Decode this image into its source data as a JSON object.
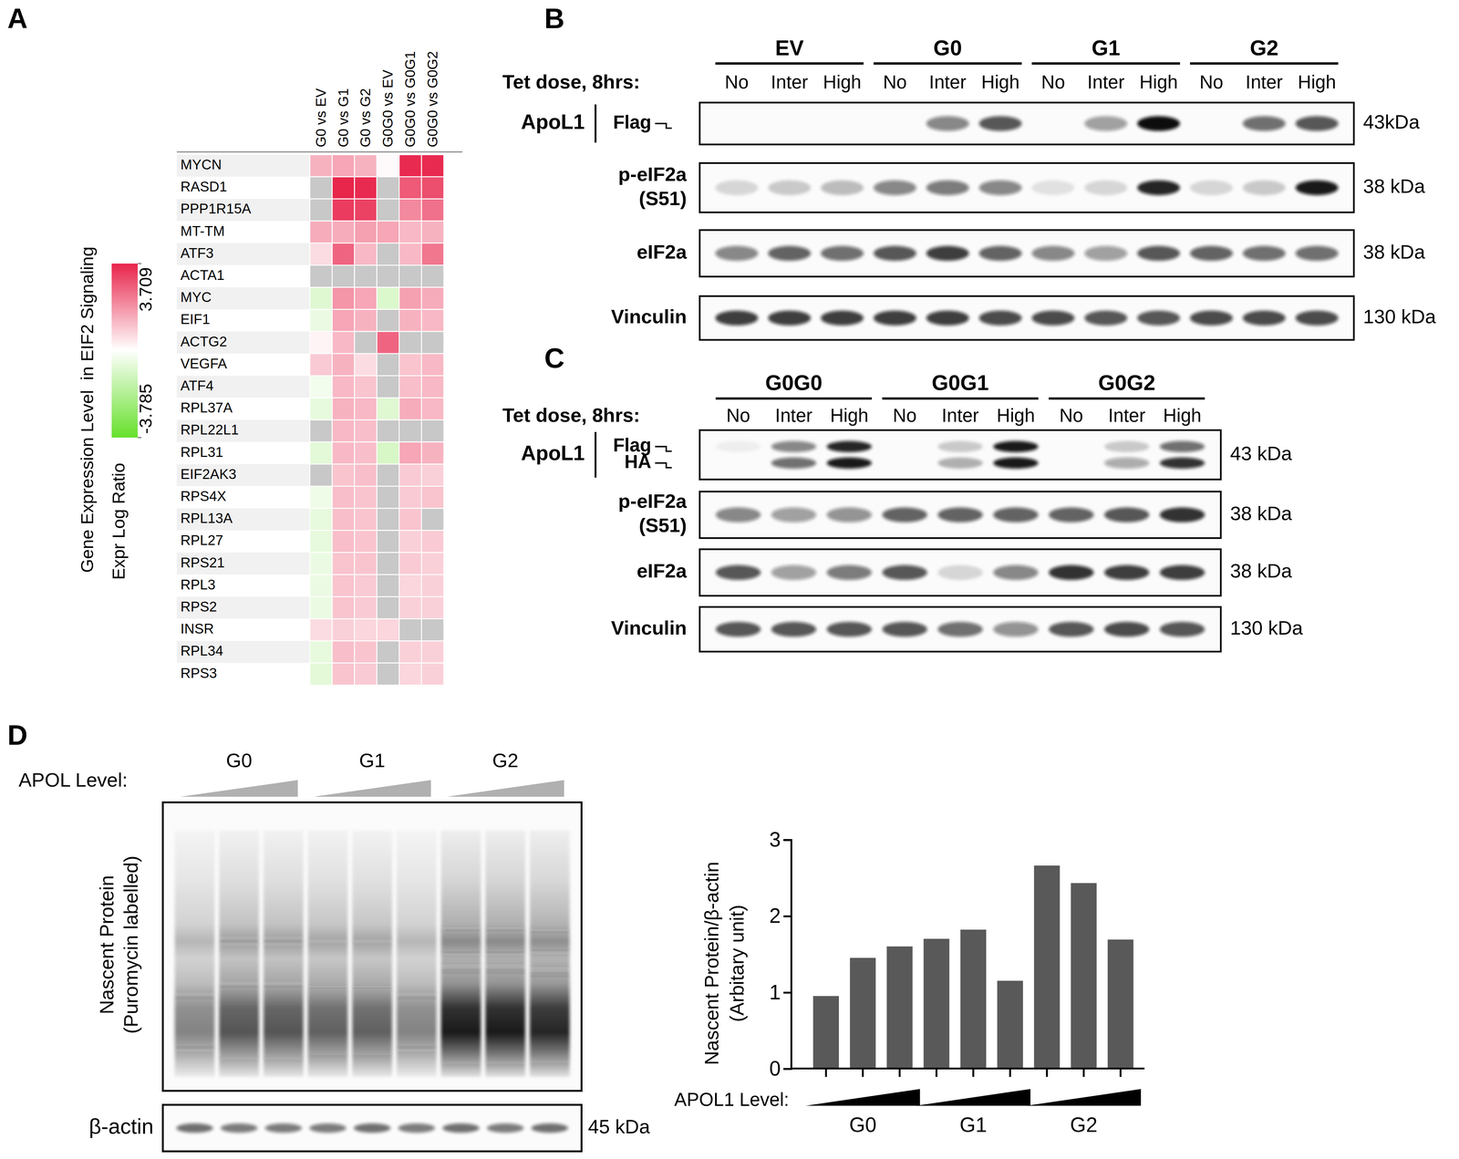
{
  "figure": {
    "panel_labels": [
      "A",
      "B",
      "C",
      "D"
    ]
  },
  "chart_data": [
    {
      "type": "heatmap",
      "panel": "A",
      "columns": [
        "G0 vs EV",
        "G0 vs G1",
        "G0 vs G2",
        "G0G0 vs EV",
        "G0G0 vs G0G1",
        "G0G0 vs G0G2"
      ],
      "rows": [
        "MYCN",
        "RASD1",
        "PPP1R15A",
        "MT-TM",
        "ATF3",
        "ACTA1",
        "MYC",
        "EIF1",
        "ACTG2",
        "VEGFA",
        "ATF4",
        "RPL37A",
        "RPL22L1",
        "RPL31",
        "EIF2AK3",
        "RPS4X",
        "RPL13A",
        "RPL27",
        "RPS21",
        "RPL3",
        "RPS2",
        "INSR",
        "RPL34",
        "RPS3"
      ],
      "cells": [
        [
          1.3,
          1.5,
          1.3,
          0.1,
          3.6,
          3.6
        ],
        [
          null,
          3.7,
          3.6,
          null,
          2.8,
          3.0
        ],
        [
          null,
          3.3,
          3.2,
          null,
          2.0,
          2.4
        ],
        [
          1.4,
          1.4,
          1.6,
          1.5,
          1.2,
          1.3
        ],
        [
          0.6,
          2.6,
          1.2,
          null,
          1.2,
          2.3
        ],
        [
          null,
          null,
          null,
          null,
          null,
          null
        ],
        [
          -0.8,
          1.8,
          1.5,
          -0.9,
          1.6,
          1.4
        ],
        [
          -0.5,
          1.5,
          1.3,
          null,
          1.3,
          1.2
        ],
        [
          0.2,
          1.2,
          null,
          2.6,
          null,
          null
        ],
        [
          0.9,
          1.3,
          0.6,
          null,
          1.0,
          1.2
        ],
        [
          -0.3,
          1.2,
          1.0,
          null,
          1.1,
          1.2
        ],
        [
          -0.6,
          1.3,
          1.2,
          -0.8,
          1.4,
          1.2
        ],
        [
          null,
          1.2,
          1.1,
          null,
          null,
          null
        ],
        [
          -0.7,
          1.2,
          1.1,
          -1.0,
          1.5,
          1.3
        ],
        [
          null,
          1.0,
          1.1,
          null,
          0.9,
          0.8
        ],
        [
          -0.4,
          1.1,
          1.0,
          null,
          0.9,
          1.0
        ],
        [
          -0.6,
          1.1,
          1.0,
          null,
          1.0,
          null
        ],
        [
          -0.6,
          1.1,
          1.0,
          null,
          0.8,
          0.9
        ],
        [
          -0.5,
          1.0,
          1.0,
          null,
          0.9,
          0.8
        ],
        [
          -0.5,
          1.0,
          0.9,
          null,
          0.7,
          0.8
        ],
        [
          -0.5,
          1.0,
          0.9,
          null,
          0.8,
          0.8
        ],
        [
          0.6,
          0.8,
          0.7,
          0.7,
          null,
          null
        ],
        [
          -0.6,
          1.1,
          1.0,
          null,
          0.8,
          0.8
        ],
        [
          -0.7,
          1.0,
          0.9,
          null,
          0.7,
          0.8
        ]
      ],
      "colorbar": {
        "title": "Gene Expression Level  in EIF2 Signaling",
        "label": "Expr Log Ratio",
        "range": [
          -3.785,
          3.709
        ],
        "ticks": [
          -3.785,
          3.709
        ],
        "colors": [
          "#66e02a",
          "#ffffff",
          "#e8244b"
        ]
      }
    },
    {
      "type": "bar",
      "panel": "D",
      "categories": [
        null,
        null,
        null,
        null,
        null,
        null,
        null,
        null,
        null
      ],
      "groups": [
        "G0",
        "G1",
        "G2"
      ],
      "group_label": "APOL1 Level:",
      "values": [
        0.95,
        1.45,
        1.6,
        1.7,
        1.82,
        1.15,
        2.66,
        2.43,
        1.69
      ],
      "color": "#595959",
      "ylabel": [
        "Nascent Protein/β-actin",
        "(Arbitary unit)"
      ],
      "ylim": [
        0,
        3
      ],
      "yticks": [
        0,
        1,
        2,
        3
      ],
      "tick_labels": "y"
    }
  ],
  "blots": [
    {
      "panel": "B",
      "tet_label": "Tet dose, 8hrs:",
      "groups": [
        "EV",
        "G0",
        "G1",
        "G2"
      ],
      "lanes": [
        "No",
        "Inter",
        "High"
      ],
      "rows": [
        {
          "label": [
            "ApoL1"
          ],
          "tags": [
            "Flag"
          ],
          "kda": "43kDa",
          "bands": [
            [
              0,
              0,
              0,
              0,
              0.5,
              0.7,
              0,
              0.4,
              1.0,
              0,
              0.6,
              0.7
            ]
          ]
        },
        {
          "label": [
            "p-eIF2a",
            "(S51)"
          ],
          "kda": "38 kDa",
          "bands": [
            [
              0.15,
              0.2,
              0.25,
              0.5,
              0.55,
              0.5,
              0.1,
              0.15,
              0.9,
              0.15,
              0.2,
              0.95
            ]
          ]
        },
        {
          "label": [
            "eIF2a"
          ],
          "kda": "38 kDa",
          "bands": [
            [
              0.5,
              0.65,
              0.6,
              0.7,
              0.8,
              0.65,
              0.5,
              0.4,
              0.7,
              0.65,
              0.6,
              0.6
            ]
          ]
        },
        {
          "label": [
            "Vinculin"
          ],
          "kda": "130 kDa",
          "bands": [
            [
              0.8,
              0.8,
              0.8,
              0.8,
              0.8,
              0.75,
              0.75,
              0.7,
              0.7,
              0.75,
              0.75,
              0.75
            ]
          ]
        }
      ]
    },
    {
      "panel": "C",
      "tet_label": "Tet dose, 8hrs:",
      "groups": [
        "G0G0",
        "G0G1",
        "G0G2"
      ],
      "lanes": [
        "No",
        "Inter",
        "High"
      ],
      "rows": [
        {
          "label": [
            "ApoL1"
          ],
          "tags": [
            "Flag",
            "HA"
          ],
          "kda": "43 kDa",
          "bands": [
            [
              0.05,
              0.5,
              0.9,
              0,
              0.2,
              0.95,
              0,
              0.2,
              0.6
            ],
            [
              0,
              0.6,
              0.95,
              0,
              0.3,
              0.95,
              0,
              0.35,
              0.85
            ]
          ]
        },
        {
          "label": [
            "p-eIF2a",
            "(S51)"
          ],
          "kda": "38 kDa",
          "bands": [
            [
              0.5,
              0.4,
              0.45,
              0.65,
              0.65,
              0.65,
              0.65,
              0.7,
              0.85
            ]
          ]
        },
        {
          "label": [
            "eIF2a"
          ],
          "kda": "38 kDa",
          "bands": [
            [
              0.7,
              0.4,
              0.55,
              0.7,
              0.15,
              0.5,
              0.85,
              0.8,
              0.8
            ]
          ]
        },
        {
          "label": [
            "Vinculin"
          ],
          "kda": "130 kDa",
          "bands": [
            [
              0.7,
              0.7,
              0.7,
              0.7,
              0.6,
              0.45,
              0.7,
              0.75,
              0.7
            ]
          ]
        }
      ]
    }
  ],
  "nascent_blot": {
    "panel": "D",
    "level_label": "APOL Level:",
    "groups": [
      "G0",
      "G1",
      "G2"
    ],
    "ylabel": [
      "Nascent Protein",
      "(Puromycin labelled)"
    ],
    "lanes": [
      0.55,
      0.75,
      0.75,
      0.7,
      0.7,
      0.55,
      1.0,
      1.0,
      0.95
    ],
    "loading_label": "β-actin",
    "loading": [
      0.6,
      0.55,
      0.55,
      0.55,
      0.6,
      0.55,
      0.6,
      0.55,
      0.6
    ],
    "loading_kda": "45 kDa"
  }
}
